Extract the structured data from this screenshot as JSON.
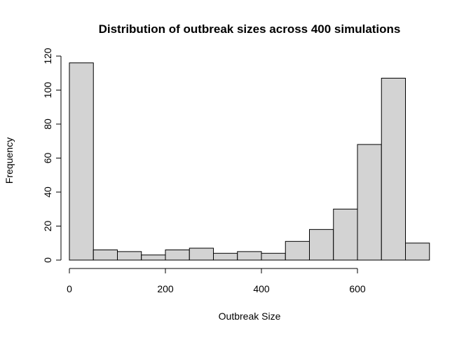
{
  "chart_data": {
    "type": "bar",
    "title": "Distribution of outbreak sizes across 400 simulations",
    "xlabel": "Outbreak Size",
    "ylabel": "Frequency",
    "bin_edges": [
      0,
      50,
      100,
      150,
      200,
      250,
      300,
      350,
      400,
      450,
      500,
      550,
      600,
      650,
      700,
      750
    ],
    "values": [
      116,
      6,
      5,
      3,
      6,
      7,
      4,
      5,
      4,
      11,
      18,
      30,
      68,
      107,
      10
    ],
    "xlim": [
      0,
      750
    ],
    "ylim": [
      0,
      120
    ],
    "xticks": [
      "0",
      "200",
      "400",
      "600"
    ],
    "yticks": [
      "0",
      "20",
      "40",
      "60",
      "80",
      "100",
      "120"
    ],
    "bar_fill": "#d3d3d3",
    "bar_stroke": "#000000",
    "grid": false
  }
}
